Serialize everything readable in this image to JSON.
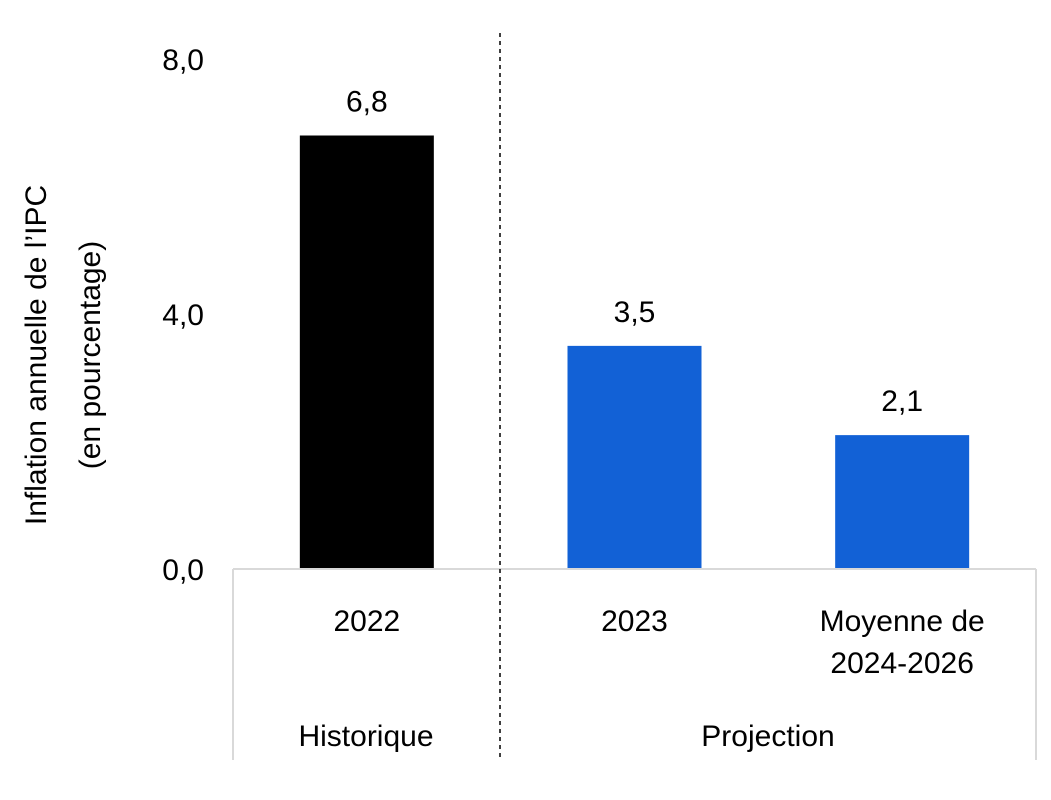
{
  "chart_data": {
    "type": "bar",
    "categories": [
      "2022",
      "2023",
      "Moyenne de 2024-2026"
    ],
    "category_lines": [
      [
        "2022"
      ],
      [
        "2023"
      ],
      [
        "Moyenne de",
        "2024-2026"
      ]
    ],
    "values": [
      6.8,
      3.5,
      2.1
    ],
    "value_labels": [
      "6,8",
      "3,5",
      "2,1"
    ],
    "bar_colors": [
      "#000000",
      "#1261d6",
      "#1261d6"
    ],
    "groups": [
      {
        "label": "Historique",
        "categories": [
          "2022"
        ]
      },
      {
        "label": "Projection",
        "categories": [
          "2023",
          "Moyenne de 2024-2026"
        ]
      }
    ],
    "ylabel_lines": [
      "Inflation annuelle de l’IPC",
      "(en pourcentage)"
    ],
    "ylim": [
      0,
      8
    ],
    "yticks": [
      0,
      4,
      8
    ],
    "ytick_labels": [
      "0,0",
      "4,0",
      "8,0"
    ],
    "grid": false,
    "legend": "none"
  }
}
